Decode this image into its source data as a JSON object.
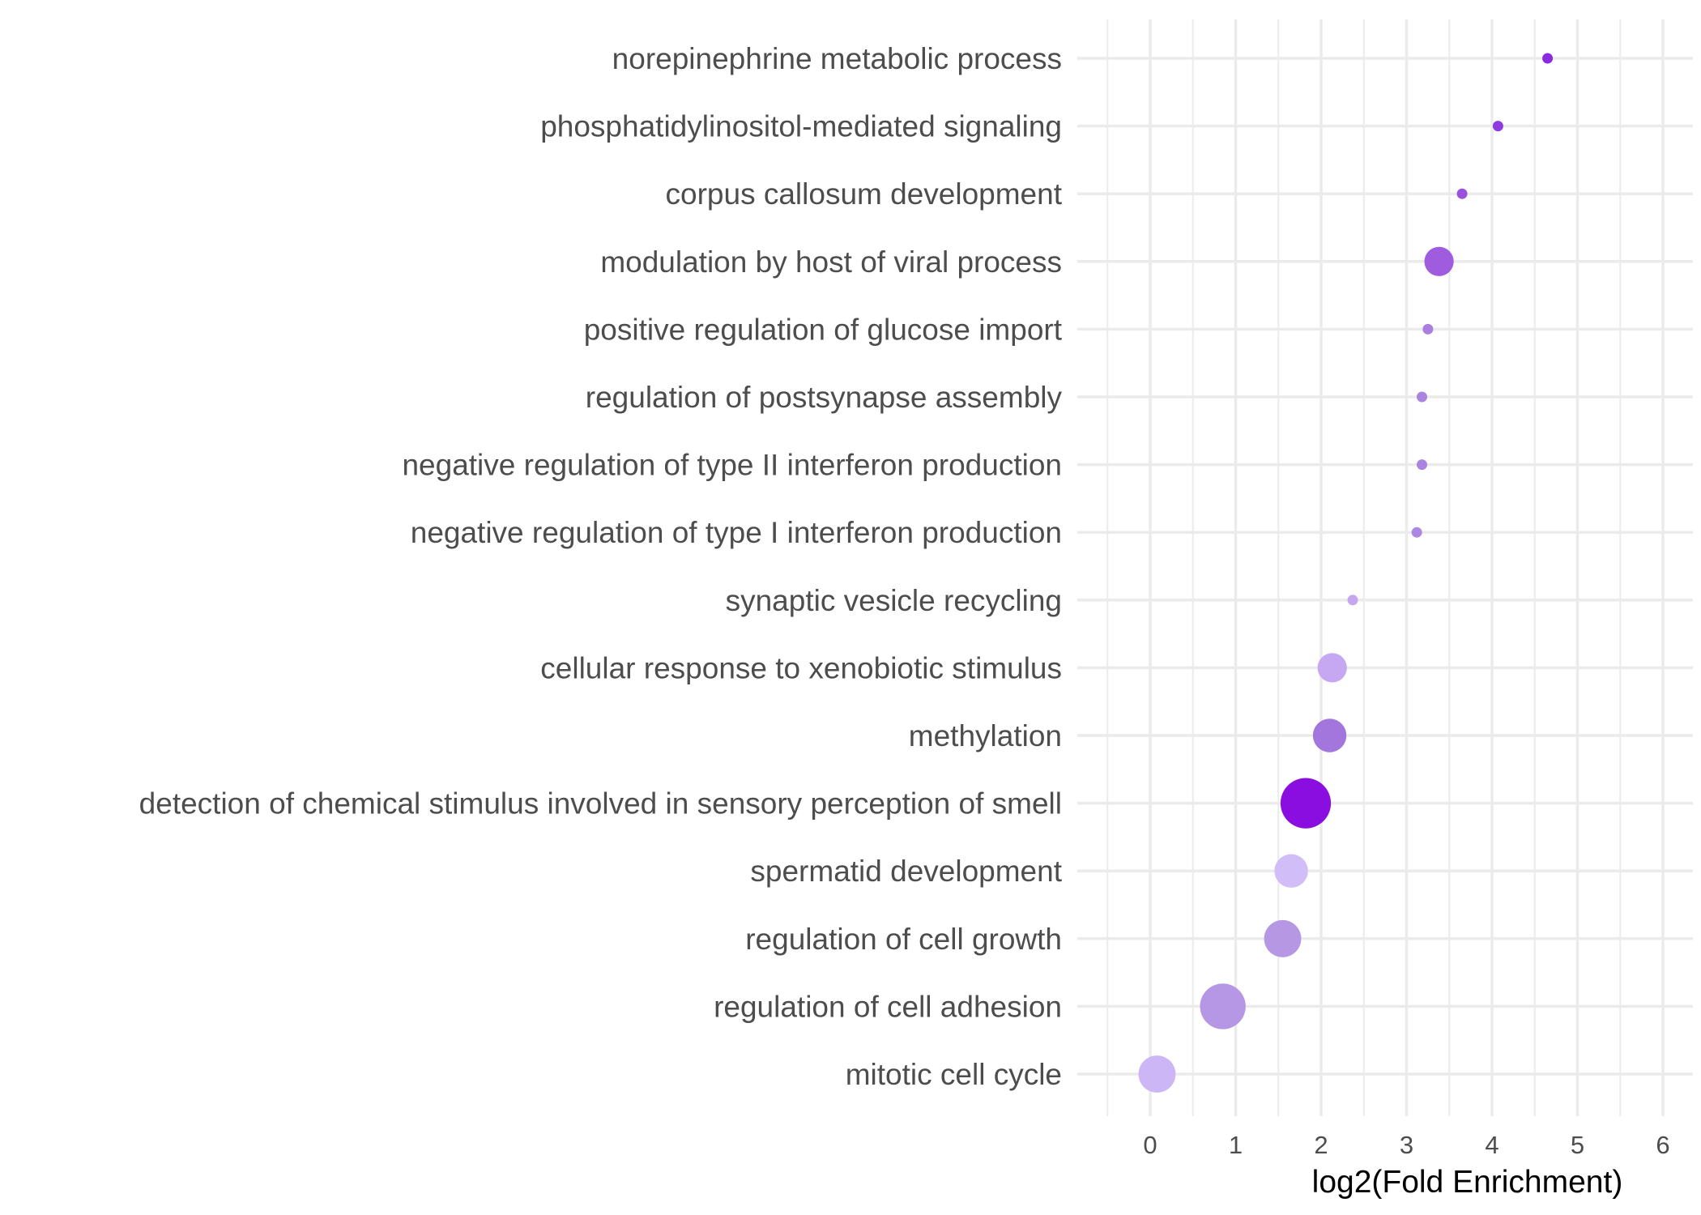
{
  "chart_data": {
    "type": "scatter",
    "title": "",
    "xlabel": "log2(Fold Enrichment)",
    "ylabel": "",
    "xlim": [
      -0.5,
      6.3
    ],
    "xticks": [
      "0",
      "1",
      "2",
      "3",
      "4",
      "5",
      "6"
    ],
    "grid": true,
    "legend": "none",
    "points": [
      {
        "term": "norepinephrine metabolic process",
        "x": 4.65,
        "size": 1,
        "color": "#8a2be2"
      },
      {
        "term": "phosphatidylinositol-mediated signaling",
        "x": 4.07,
        "size": 1,
        "color": "#8f3ae0"
      },
      {
        "term": "corpus callosum development",
        "x": 3.65,
        "size": 1,
        "color": "#9b51dd"
      },
      {
        "term": "modulation by host of viral process",
        "x": 3.38,
        "size": 3,
        "color": "#a05cde"
      },
      {
        "term": "positive regulation of glucose import",
        "x": 3.25,
        "size": 1,
        "color": "#aa7fe0"
      },
      {
        "term": "regulation of postsynapse assembly",
        "x": 3.18,
        "size": 1,
        "color": "#ab84e0"
      },
      {
        "term": "negative regulation of type II interferon production",
        "x": 3.18,
        "size": 1,
        "color": "#ab84e0"
      },
      {
        "term": "negative regulation of type I interferon production",
        "x": 3.12,
        "size": 1,
        "color": "#ad88e2"
      },
      {
        "term": "synaptic vesicle recycling",
        "x": 2.37,
        "size": 1,
        "color": "#c4a7f0"
      },
      {
        "term": "cellular response to xenobiotic stimulus",
        "x": 2.13,
        "size": 3,
        "color": "#c5a8f1"
      },
      {
        "term": "methylation",
        "x": 2.1,
        "size": 4,
        "color": "#a276dc"
      },
      {
        "term": "detection of chemical stimulus involved in sensory perception of smell",
        "x": 1.82,
        "size": 10,
        "color": "#8b0ee1"
      },
      {
        "term": "spermatid development",
        "x": 1.65,
        "size": 4,
        "color": "#d1bdf7"
      },
      {
        "term": "regulation of cell growth",
        "x": 1.55,
        "size": 5,
        "color": "#b597e4"
      },
      {
        "term": "regulation of cell adhesion",
        "x": 0.85,
        "size": 8,
        "color": "#b697e6"
      },
      {
        "term": "mitotic cell cycle",
        "x": 0.08,
        "size": 5,
        "color": "#cdb6f5"
      }
    ]
  }
}
